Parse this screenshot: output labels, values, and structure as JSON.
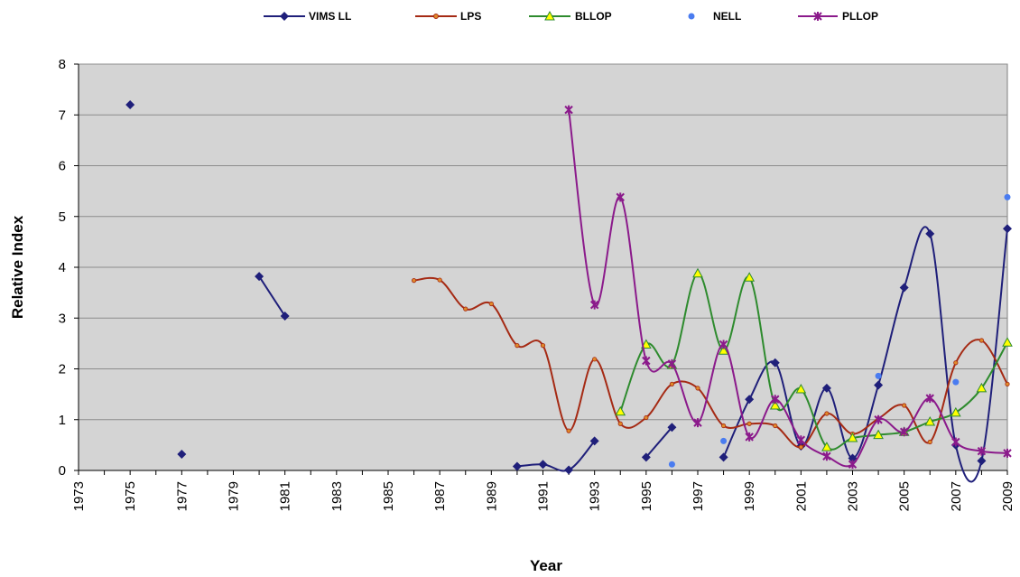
{
  "chart_data": {
    "type": "line",
    "title": "",
    "xlabel": "Year",
    "ylabel": "Relative Index",
    "xlim": [
      1973,
      2009
    ],
    "ylim": [
      0,
      8
    ],
    "x_ticks": [
      "1973",
      "1975",
      "1977",
      "1979",
      "1981",
      "1983",
      "1985",
      "1987",
      "1989",
      "1991",
      "1993",
      "1995",
      "1997",
      "1999",
      "2001",
      "2003",
      "2005",
      "2007",
      "2009"
    ],
    "y_ticks": [
      "0",
      "1",
      "2",
      "3",
      "4",
      "5",
      "6",
      "7",
      "8"
    ],
    "grid": true,
    "legend_position": "top",
    "plot_background": "#d4d4d4",
    "series": [
      {
        "name": "VIMS LL",
        "color": "#1f1f7a",
        "marker": "diamond",
        "points": [
          [
            1975,
            7.2
          ],
          [
            1977,
            0.32
          ],
          [
            1980,
            3.82
          ],
          [
            1981,
            3.04
          ],
          [
            1990,
            0.08
          ],
          [
            1991,
            0.12
          ],
          [
            1992,
            0.01
          ],
          [
            1993,
            0.58
          ],
          [
            1995,
            0.26
          ],
          [
            1996,
            0.85
          ],
          [
            1998,
            0.26
          ],
          [
            1999,
            1.4
          ],
          [
            2000,
            2.12
          ],
          [
            2001,
            0.48
          ],
          [
            2002,
            1.62
          ],
          [
            2003,
            0.24
          ],
          [
            2004,
            1.68
          ],
          [
            2005,
            3.6
          ],
          [
            2006,
            4.66
          ],
          [
            2007,
            0.5
          ],
          [
            2008,
            0.19
          ],
          [
            2009,
            4.76
          ]
        ],
        "segments": [
          [
            0,
            0
          ],
          [
            1,
            1
          ],
          [
            2,
            3
          ],
          [
            4,
            7
          ],
          [
            8,
            9
          ],
          [
            10,
            21
          ]
        ]
      },
      {
        "name": "LPS",
        "color": "#a52a14",
        "marker": "dot",
        "points": [
          [
            1986,
            3.74
          ],
          [
            1987,
            3.75
          ],
          [
            1988,
            3.18
          ],
          [
            1989,
            3.28
          ],
          [
            1990,
            2.46
          ],
          [
            1991,
            2.46
          ],
          [
            1992,
            0.78
          ],
          [
            1993,
            2.19
          ],
          [
            1994,
            0.92
          ],
          [
            1995,
            1.04
          ],
          [
            1996,
            1.7
          ],
          [
            1997,
            1.62
          ],
          [
            1998,
            0.88
          ],
          [
            1999,
            0.92
          ],
          [
            2000,
            0.88
          ],
          [
            2001,
            0.46
          ],
          [
            2002,
            1.12
          ],
          [
            2003,
            0.72
          ],
          [
            2004,
            1.02
          ],
          [
            2005,
            1.28
          ],
          [
            2006,
            0.56
          ],
          [
            2007,
            2.12
          ],
          [
            2008,
            2.56
          ],
          [
            2009,
            1.7
          ]
        ],
        "segments": [
          [
            0,
            23
          ]
        ]
      },
      {
        "name": "BLLOP",
        "color": "#2e8b2e",
        "marker": "triangle",
        "marker_fill": "#ffff00",
        "points": [
          [
            1994,
            1.16
          ],
          [
            1995,
            2.48
          ],
          [
            1996,
            2.08
          ],
          [
            1997,
            3.88
          ],
          [
            1998,
            2.36
          ],
          [
            1999,
            3.8
          ],
          [
            2000,
            1.28
          ],
          [
            2001,
            1.6
          ],
          [
            2002,
            0.46
          ],
          [
            2003,
            0.64
          ],
          [
            2004,
            0.7
          ],
          [
            2005,
            0.76
          ],
          [
            2006,
            0.96
          ],
          [
            2007,
            1.14
          ],
          [
            2008,
            1.62
          ],
          [
            2009,
            2.52
          ]
        ],
        "segments": [
          [
            0,
            15
          ]
        ]
      },
      {
        "name": "NELL",
        "color": "#4a7cf0",
        "marker": "dot",
        "points": [
          [
            1996,
            0.12
          ],
          [
            1998,
            0.58
          ],
          [
            2004,
            1.86
          ],
          [
            2007,
            1.74
          ],
          [
            2009,
            5.38
          ]
        ],
        "segments": []
      },
      {
        "name": "PLLOP",
        "color": "#8b1a8b",
        "marker": "star",
        "points": [
          [
            1992,
            7.1
          ],
          [
            1993,
            3.26
          ],
          [
            1994,
            5.38
          ],
          [
            1995,
            2.16
          ],
          [
            1996,
            2.1
          ],
          [
            1997,
            0.94
          ],
          [
            1998,
            2.48
          ],
          [
            1999,
            0.66
          ],
          [
            2000,
            1.4
          ],
          [
            2001,
            0.6
          ],
          [
            2002,
            0.28
          ],
          [
            2003,
            0.12
          ],
          [
            2004,
            1.0
          ],
          [
            2005,
            0.76
          ],
          [
            2006,
            1.42
          ],
          [
            2007,
            0.56
          ],
          [
            2008,
            0.38
          ],
          [
            2009,
            0.34
          ]
        ],
        "segments": [
          [
            0,
            17
          ]
        ]
      }
    ]
  }
}
